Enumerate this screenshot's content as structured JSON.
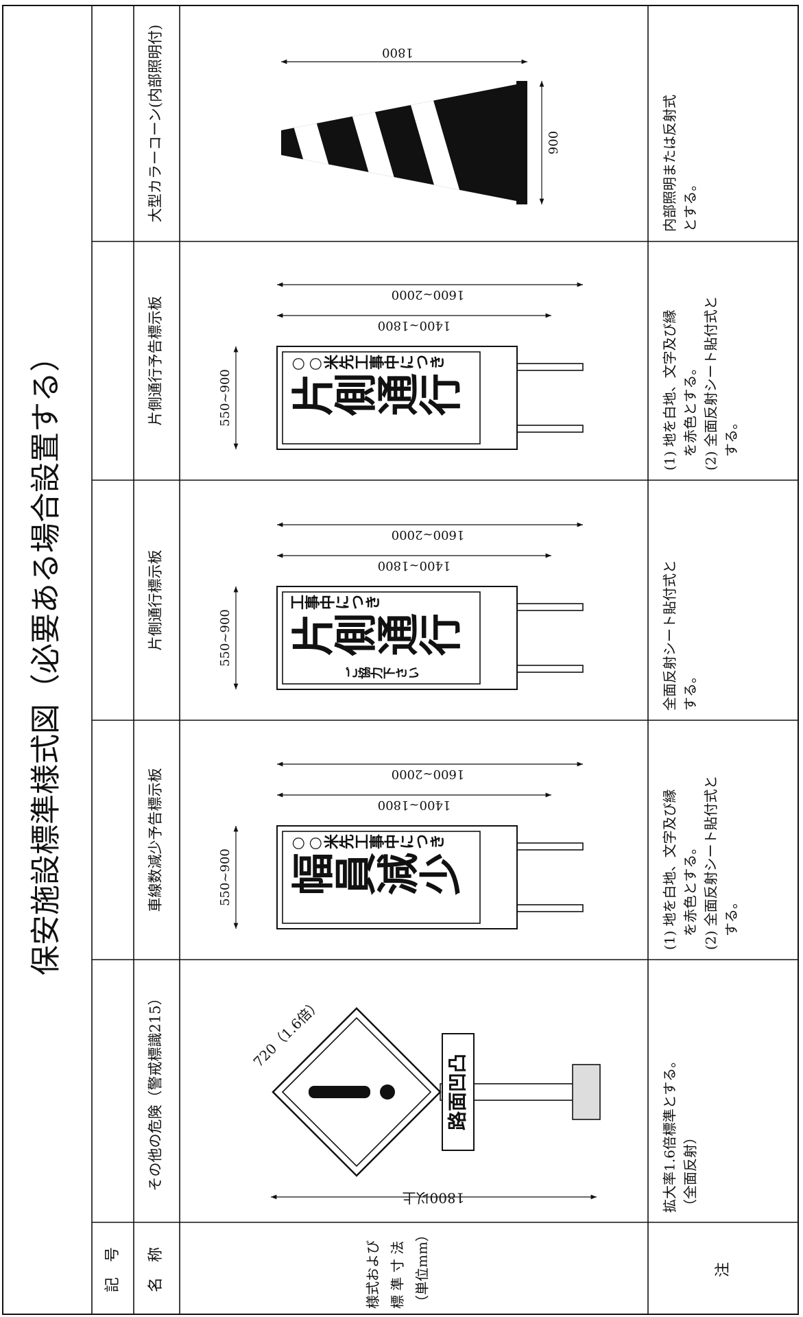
{
  "title": "保安施設標準様式図（必要ある場合設置する）",
  "header": {
    "code": "記　号",
    "name": "名　称",
    "style": [
      "様式および",
      "標 準 寸 法",
      "（単位mm）"
    ],
    "note": "注"
  },
  "columns": [
    {
      "name": "その他の危険（警戒標識215）",
      "kind": "diamond",
      "drawing": {
        "size": "720（1.6倍）",
        "height": "1800以上",
        "plate": "路面凹凸"
      },
      "notes": [
        "拡大率1.6倍標準とする。",
        "（全面反射）"
      ]
    },
    {
      "name": "車線数減少予告標示板",
      "kind": "panel",
      "drawing": {
        "right": "○○米先工事中につき",
        "main": "幅員減少",
        "width": "550~900",
        "inner": "1400~1800",
        "outer": "1600~2000"
      },
      "notes": [
        "(1) 地を白地、文字及び縁",
        "　を赤色とする。",
        "(2) 全面反射シート貼付式と",
        "　する。"
      ]
    },
    {
      "name": "片側通行標示板",
      "kind": "panel",
      "drawing": {
        "right": "工事中につき",
        "main": "片側通行",
        "left": "ご協力下さい",
        "width": "550~900",
        "inner": "1400~1800",
        "outer": "1600~2000"
      },
      "notes": [
        "全面反射シート貼付式と",
        "する。"
      ]
    },
    {
      "name": "片側通行予告標示板",
      "kind": "panel",
      "drawing": {
        "right": "○○米先工事中につき",
        "main": "片側通行",
        "width": "550~900",
        "inner": "1400~1800",
        "outer": "1600~2000"
      },
      "notes": [
        "(1) 地を白地、文字及び縁",
        "　を赤色とする。",
        "(2) 全面反射シート貼付式と",
        "　する。"
      ]
    },
    {
      "name": "大型カラーコーン(内部照明付)",
      "kind": "cone",
      "drawing": {
        "length": "1800",
        "base": "900"
      },
      "notes": [
        "内部照明または反射式",
        "とする。"
      ]
    }
  ]
}
